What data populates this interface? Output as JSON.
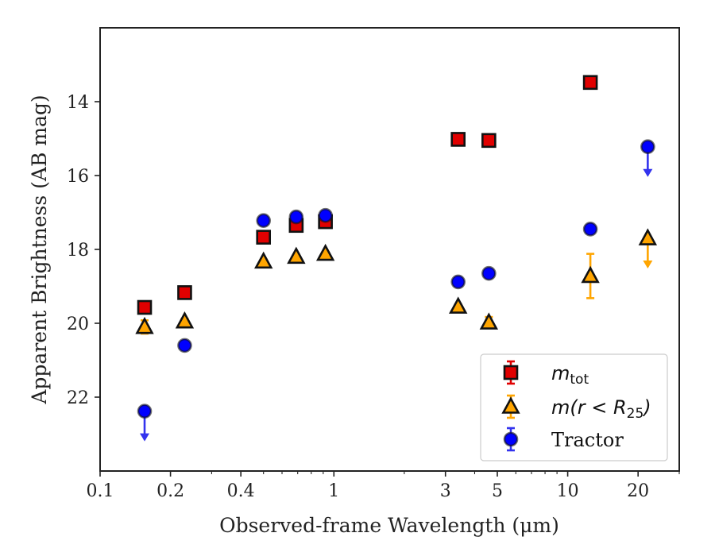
{
  "chart_data": {
    "type": "scatter",
    "xlabel": "Observed-frame Wavelength (μm)",
    "ylabel": "Apparent Brightness (AB mag)",
    "xscale": "log",
    "xlim": [
      0.1,
      30
    ],
    "ylim": [
      24,
      12
    ],
    "y_inverted": true,
    "x_ticks": [
      0.1,
      0.2,
      0.4,
      1,
      3,
      5,
      10,
      20
    ],
    "x_tick_labels": [
      "0.1",
      "0.2",
      "0.4",
      "1",
      "3",
      "5",
      "10",
      "20"
    ],
    "y_ticks": [
      14,
      16,
      18,
      20,
      22
    ],
    "y_tick_labels": [
      "14",
      "16",
      "18",
      "20",
      "22"
    ],
    "grid": false,
    "legend_position": "bottom-right",
    "series": [
      {
        "name": "m_tot",
        "legend_main": "m",
        "legend_sub": "tot",
        "marker": "square",
        "color": "#e00000",
        "error_color": "#e00000",
        "points": [
          {
            "x": 0.155,
            "y": 19.57,
            "err": 0.08,
            "upper_limit": false
          },
          {
            "x": 0.23,
            "y": 19.17,
            "err": 0.06,
            "upper_limit": false
          },
          {
            "x": 0.5,
            "y": 17.67,
            "err": 0.05,
            "upper_limit": false
          },
          {
            "x": 0.69,
            "y": 17.35,
            "err": 0.05,
            "upper_limit": false
          },
          {
            "x": 0.92,
            "y": 17.25,
            "err": 0.05,
            "upper_limit": false
          },
          {
            "x": 3.4,
            "y": 15.02,
            "err": 0.04,
            "upper_limit": false
          },
          {
            "x": 4.6,
            "y": 15.05,
            "err": 0.04,
            "upper_limit": false
          },
          {
            "x": 12.5,
            "y": 13.48,
            "err": 0.05,
            "upper_limit": false
          }
        ]
      },
      {
        "name": "m(r < R_25)",
        "legend_main": "m(r < R",
        "legend_sub": "25",
        "legend_tail": ")",
        "marker": "triangle",
        "color": "#ffa500",
        "error_color": "#ffa500",
        "points": [
          {
            "x": 0.155,
            "y": 20.1,
            "err": 0.18,
            "upper_limit": false
          },
          {
            "x": 0.23,
            "y": 19.95,
            "err": 0.07,
            "upper_limit": false
          },
          {
            "x": 0.5,
            "y": 18.33,
            "err": 0.05,
            "upper_limit": false
          },
          {
            "x": 0.69,
            "y": 18.2,
            "err": 0.05,
            "upper_limit": false
          },
          {
            "x": 0.92,
            "y": 18.12,
            "err": 0.05,
            "upper_limit": false
          },
          {
            "x": 3.4,
            "y": 19.55,
            "err": 0.06,
            "upper_limit": false
          },
          {
            "x": 4.6,
            "y": 19.98,
            "err": 0.15,
            "upper_limit": false
          },
          {
            "x": 12.5,
            "y": 18.72,
            "err": 0.6,
            "upper_limit": false
          },
          {
            "x": 22,
            "y": 17.7,
            "err": 0,
            "upper_limit": true
          }
        ]
      },
      {
        "name": "Tractor",
        "legend_main": "Tractor",
        "marker": "circle",
        "color": "#0000ff",
        "error_color": "#3333ee",
        "points": [
          {
            "x": 0.155,
            "y": 22.38,
            "err": 0,
            "upper_limit": true
          },
          {
            "x": 0.23,
            "y": 20.6,
            "err": 0.06,
            "upper_limit": false
          },
          {
            "x": 0.5,
            "y": 17.22,
            "err": 0.05,
            "upper_limit": false
          },
          {
            "x": 0.69,
            "y": 17.12,
            "err": 0.05,
            "upper_limit": false
          },
          {
            "x": 0.92,
            "y": 17.08,
            "err": 0.05,
            "upper_limit": false
          },
          {
            "x": 3.4,
            "y": 18.88,
            "err": 0.05,
            "upper_limit": false
          },
          {
            "x": 4.6,
            "y": 18.65,
            "err": 0.05,
            "upper_limit": false
          },
          {
            "x": 12.5,
            "y": 17.45,
            "err": 0.05,
            "upper_limit": false
          },
          {
            "x": 22,
            "y": 15.22,
            "err": 0,
            "upper_limit": true
          }
        ]
      }
    ]
  }
}
